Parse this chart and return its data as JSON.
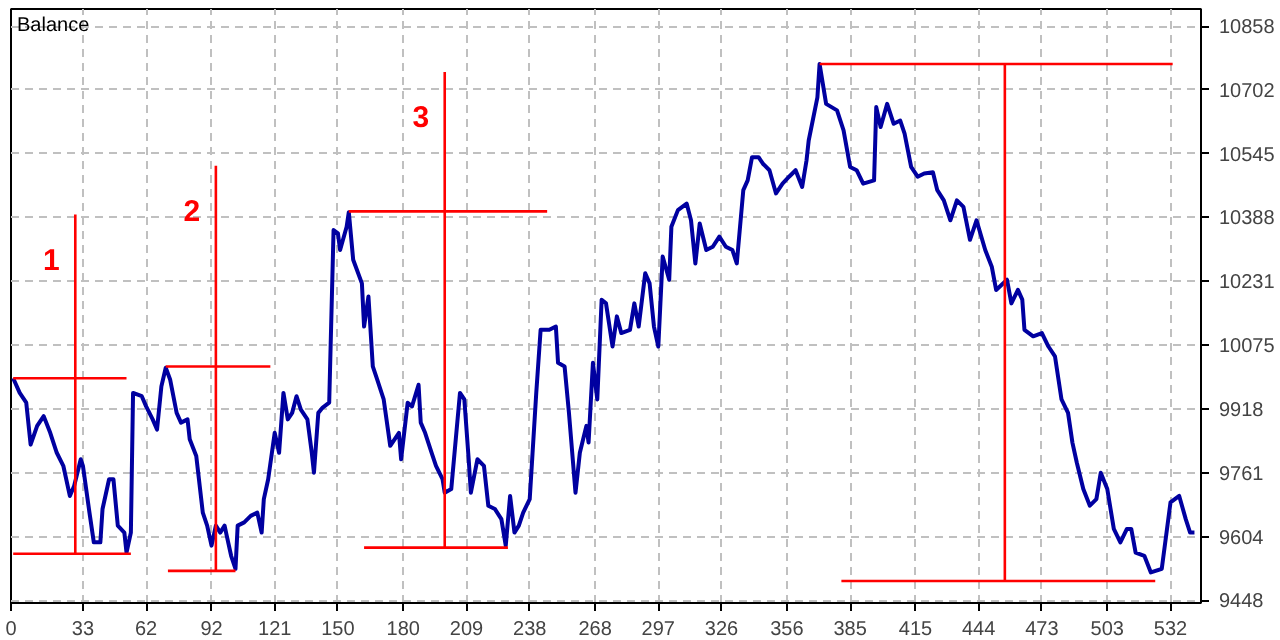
{
  "chart_data": {
    "type": "line",
    "title": "Balance",
    "xlim": [
      0,
      546
    ],
    "ylim": [
      9441,
      10900
    ],
    "xticks": [
      0,
      33,
      62,
      92,
      121,
      150,
      180,
      209,
      238,
      268,
      297,
      326,
      356,
      385,
      415,
      444,
      473,
      503,
      532
    ],
    "yticks": [
      9448,
      9604,
      9761,
      9918,
      10075,
      10231,
      10388,
      10545,
      10702,
      10858
    ],
    "grid": true,
    "marker": "none",
    "line_style": "solid",
    "annotations": [
      "1",
      "2",
      "3"
    ],
    "series": [
      {
        "color": "#0000a0",
        "x": [
          1,
          4,
          7,
          9,
          12,
          15,
          18,
          21,
          24,
          27,
          29,
          32,
          33,
          36,
          38,
          41,
          42,
          45,
          47,
          49,
          52,
          53,
          55,
          56,
          60,
          62,
          65,
          67,
          69,
          71,
          73,
          76,
          78,
          81,
          82,
          85,
          88,
          90,
          92,
          94,
          96,
          98,
          99,
          101,
          103,
          104,
          107,
          110,
          113,
          115,
          116,
          118,
          121,
          123,
          125,
          127,
          129,
          131,
          133,
          136,
          138,
          139,
          141,
          143,
          146,
          148,
          150,
          151,
          154,
          155,
          157,
          161,
          162,
          164,
          166,
          168,
          171,
          174,
          178,
          179,
          182,
          184,
          187,
          188,
          190,
          193,
          195,
          198,
          199,
          202,
          206,
          208,
          210,
          211,
          214,
          217,
          219,
          222,
          225,
          227,
          229,
          231,
          233,
          235,
          238,
          241,
          243,
          247,
          250,
          251,
          254,
          256,
          257,
          259,
          261,
          264,
          265,
          267,
          269,
          271,
          273,
          276,
          278,
          280,
          284,
          286,
          288,
          291,
          293,
          295,
          297,
          299,
          302,
          303,
          306,
          310,
          312,
          314,
          316,
          319,
          322,
          325,
          328,
          331,
          333,
          336,
          338,
          340,
          343,
          345,
          348,
          351,
          354,
          357,
          360,
          363,
          365,
          366,
          370,
          371,
          374,
          379,
          382,
          385,
          388,
          391,
          396,
          397,
          399,
          402,
          405,
          408,
          410,
          413,
          416,
          419,
          423,
          425,
          428,
          431,
          434,
          437,
          440,
          443,
          447,
          450,
          452,
          457,
          459,
          462,
          464,
          465,
          469,
          473,
          476,
          479,
          482,
          485,
          487,
          489,
          492,
          495,
          498,
          500,
          503,
          506,
          509,
          512,
          514,
          516,
          520,
          523,
          528,
          532,
          536,
          539,
          541,
          543
        ],
        "values": [
          9993,
          9957,
          9933,
          9830,
          9876,
          9900,
          9859,
          9810,
          9778,
          9704,
          9729,
          9794,
          9778,
          9663,
          9590,
          9590,
          9672,
          9745,
          9745,
          9631,
          9614,
          9565,
          9614,
          9957,
          9949,
          9924,
          9892,
          9867,
          9973,
          10019,
          9990,
          9908,
          9884,
          9892,
          9843,
          9802,
          9663,
          9631,
          9582,
          9631,
          9614,
          9631,
          9606,
          9557,
          9525,
          9631,
          9639,
          9655,
          9663,
          9614,
          9696,
          9745,
          9859,
          9810,
          9957,
          9892,
          9908,
          9949,
          9916,
          9892,
          9810,
          9761,
          9908,
          9921,
          9933,
          10357,
          10349,
          10308,
          10365,
          10401,
          10284,
          10226,
          10120,
          10194,
          10022,
          9990,
          9941,
          9827,
          9859,
          9794,
          9933,
          9924,
          9977,
          9884,
          9859,
          9810,
          9778,
          9745,
          9712,
          9721,
          9957,
          9941,
          9794,
          9712,
          9794,
          9778,
          9680,
          9672,
          9647,
          9582,
          9704,
          9614,
          9631,
          9663,
          9696,
          9957,
          10112,
          10112,
          10120,
          10031,
          10022,
          9908,
          9843,
          9712,
          9810,
          9876,
          9835,
          10031,
          9941,
          10186,
          10177,
          10071,
          10145,
          10104,
          10112,
          10177,
          10120,
          10251,
          10226,
          10120,
          10071,
          10292,
          10235,
          10365,
          10406,
          10422,
          10381,
          10275,
          10373,
          10308,
          10316,
          10341,
          10316,
          10308,
          10275,
          10455,
          10479,
          10536,
          10536,
          10520,
          10504,
          10447,
          10471,
          10488,
          10504,
          10463,
          10528,
          10577,
          10683,
          10765,
          10667,
          10651,
          10602,
          10512,
          10504,
          10471,
          10479,
          10659,
          10610,
          10667,
          10618,
          10626,
          10594,
          10512,
          10488,
          10496,
          10499,
          10455,
          10430,
          10381,
          10430,
          10414,
          10333,
          10381,
          10308,
          10267,
          10210,
          10235,
          10177,
          10210,
          10186,
          10112,
          10096,
          10104,
          10071,
          10047,
          9941,
          9908,
          9835,
          9786,
          9721,
          9680,
          9696,
          9761,
          9721,
          9623,
          9590,
          9623,
          9623,
          9565,
          9557,
          9516,
          9525,
          9688,
          9704,
          9647,
          9614,
          9614
        ]
      },
      {
        "color": "#ff0000",
        "x": [
          1,
          53
        ],
        "values": [
          9993,
          9993
        ]
      },
      {
        "color": "#ff0000",
        "x": [
          1,
          55
        ],
        "values": [
          9562,
          9562
        ]
      },
      {
        "color": "#ff0000",
        "x": [
          29.5,
          29.5
        ],
        "values": [
          10395,
          9562
        ]
      },
      {
        "color": "#ff0000",
        "x": [
          71,
          119
        ],
        "values": [
          10022,
          10022
        ]
      },
      {
        "color": "#ff0000",
        "x": [
          72,
          103
        ],
        "values": [
          9520,
          9520
        ]
      },
      {
        "color": "#ff0000",
        "x": [
          94,
          94
        ],
        "values": [
          10515,
          9520
        ]
      },
      {
        "color": "#ff0000",
        "x": [
          155,
          246
        ],
        "values": [
          10403,
          10403
        ]
      },
      {
        "color": "#ff0000",
        "x": [
          162,
          228
        ],
        "values": [
          9577,
          9577
        ]
      },
      {
        "color": "#ff0000",
        "x": [
          199,
          199
        ],
        "values": [
          10745,
          9577
        ]
      },
      {
        "color": "#ff0000",
        "x": [
          371,
          533
        ],
        "values": [
          10765,
          10765
        ]
      },
      {
        "color": "#ff0000",
        "x": [
          381,
          525
        ],
        "values": [
          9495,
          9495
        ]
      },
      {
        "color": "#ff0000",
        "x": [
          456,
          456
        ],
        "values": [
          10765,
          9495
        ]
      }
    ]
  }
}
